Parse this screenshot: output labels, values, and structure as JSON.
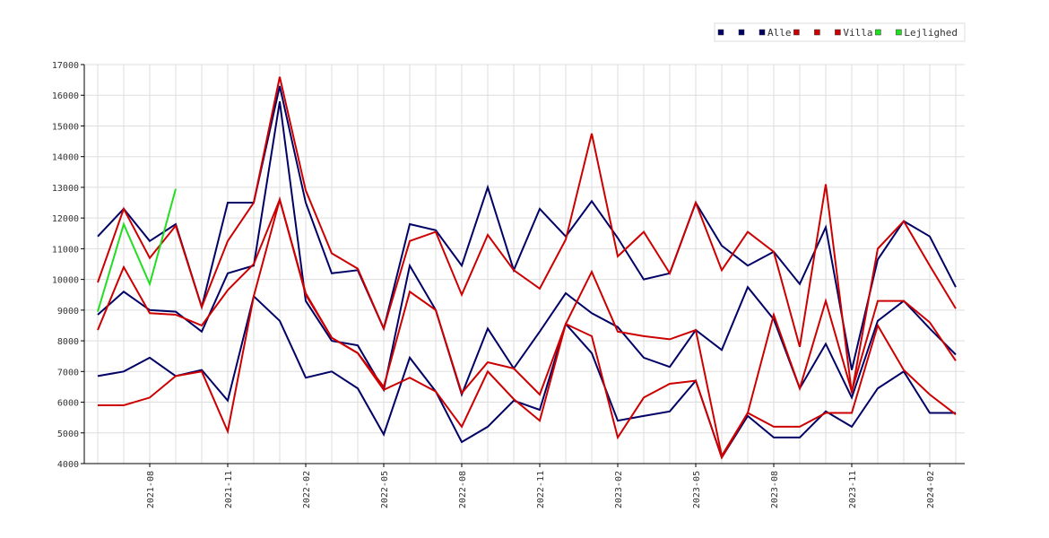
{
  "chart_data": {
    "type": "line",
    "ylim": [
      4000,
      17000
    ],
    "y_ticks": [
      4000,
      5000,
      6000,
      7000,
      8000,
      9000,
      10000,
      11000,
      12000,
      13000,
      14000,
      15000,
      16000,
      17000
    ],
    "x_months": [
      "2021-06",
      "2021-07",
      "2021-08",
      "2021-09",
      "2021-10",
      "2021-11",
      "2021-12",
      "2022-01",
      "2022-02",
      "2022-03",
      "2022-04",
      "2022-05",
      "2022-06",
      "2022-07",
      "2022-08",
      "2022-09",
      "2022-10",
      "2022-11",
      "2022-12",
      "2023-01",
      "2023-02",
      "2023-03",
      "2023-04",
      "2023-05",
      "2023-06",
      "2023-07",
      "2023-08",
      "2023-09",
      "2023-10",
      "2023-11",
      "2023-12",
      "2024-01",
      "2024-02",
      "2024-03"
    ],
    "x_tick_labels": [
      "2021-08",
      "2021-11",
      "2022-02",
      "2022-05",
      "2022-08",
      "2022-11",
      "2023-02",
      "2023-05",
      "2023-08",
      "2023-11",
      "2024-02"
    ],
    "grid": true,
    "legend_position": "top-right",
    "legend": [
      {
        "label": "",
        "color": "#000066"
      },
      {
        "label": "",
        "color": "#000066"
      },
      {
        "label": "Alle",
        "color": "#000066"
      },
      {
        "label": "",
        "color": "#cc0000"
      },
      {
        "label": "",
        "color": "#cc0000"
      },
      {
        "label": "Villa",
        "color": "#cc0000"
      },
      {
        "label": "",
        "color": "#22dd22"
      },
      {
        "label": "Lejlighed",
        "color": "#22dd22"
      }
    ],
    "series": [
      {
        "group": "Alle",
        "color": "#000066",
        "values": [
          11400,
          12300,
          11250,
          11800,
          9100,
          12500,
          12500,
          16300,
          12500,
          10200,
          10300,
          8400,
          11800,
          11600,
          10450,
          13000,
          10300,
          12300,
          11400,
          12550,
          11350,
          10000,
          10200,
          12500,
          11100,
          10450,
          10900,
          9850,
          11700,
          7050,
          10650,
          11900,
          11400,
          9750
        ]
      },
      {
        "group": "Alle",
        "color": "#000066",
        "values": [
          8850,
          9600,
          9000,
          8950,
          8300,
          10200,
          10450,
          15800,
          9300,
          8000,
          7850,
          6400,
          10450,
          9000,
          6250,
          8400,
          7100,
          8300,
          9550,
          8900,
          8450,
          7450,
          7150,
          8350,
          7700,
          9750,
          8700,
          6450,
          7900,
          6150,
          8650,
          9300,
          8400,
          7550
        ]
      },
      {
        "group": "Alle",
        "color": "#000066",
        "values": [
          6850,
          7000,
          7450,
          6850,
          7050,
          6050,
          9450,
          8650,
          6800,
          7000,
          6450,
          4950,
          7450,
          6350,
          4700,
          5200,
          6050,
          5750,
          8550,
          7600,
          5400,
          5550,
          5700,
          6700,
          4200,
          5550,
          4850,
          4850,
          5700,
          5200,
          6450,
          7000,
          5650,
          5650
        ]
      },
      {
        "group": "Villa",
        "color": "#cc0000",
        "values": [
          9900,
          12300,
          10700,
          11750,
          9100,
          11250,
          12500,
          16600,
          12900,
          10850,
          10350,
          8400,
          11250,
          11550,
          9500,
          11450,
          10300,
          9700,
          11300,
          14750,
          10750,
          11550,
          10200,
          12500,
          10300,
          11550,
          10900,
          7800,
          13100,
          6300,
          11000,
          11900,
          10450,
          9050
        ]
      },
      {
        "group": "Villa",
        "color": "#cc0000",
        "values": [
          8350,
          10400,
          8900,
          8850,
          8500,
          9650,
          10500,
          12600,
          9550,
          8100,
          7600,
          6500,
          9600,
          9000,
          6300,
          7300,
          7100,
          6250,
          8550,
          8150,
          4850,
          6150,
          6600,
          6700,
          4200,
          5650,
          5200,
          5200,
          5650,
          5650,
          8500,
          7050,
          6250,
          5600
        ]
      },
      {
        "group": "Villa",
        "color": "#cc0000",
        "values": [
          5900,
          5900,
          6150,
          6850,
          7000,
          5050,
          9450,
          12600,
          9500,
          8100,
          7600,
          6400,
          6800,
          6350,
          5200,
          7000,
          6100,
          5400,
          8550,
          10250,
          8300,
          8150,
          8050,
          8350,
          4250,
          5650,
          8850,
          6450,
          9300,
          6350,
          9300,
          9300,
          8600,
          7350
        ]
      },
      {
        "group": "Lejlighed",
        "color": "#22dd22",
        "values": [
          8950,
          11800,
          9850,
          12950,
          null,
          null,
          null,
          null,
          null,
          null,
          null,
          null,
          null,
          null,
          null,
          null,
          null,
          null,
          null,
          null,
          null,
          null,
          null,
          null,
          null,
          null,
          null,
          null,
          null,
          null,
          null,
          null,
          null,
          null
        ]
      }
    ]
  }
}
